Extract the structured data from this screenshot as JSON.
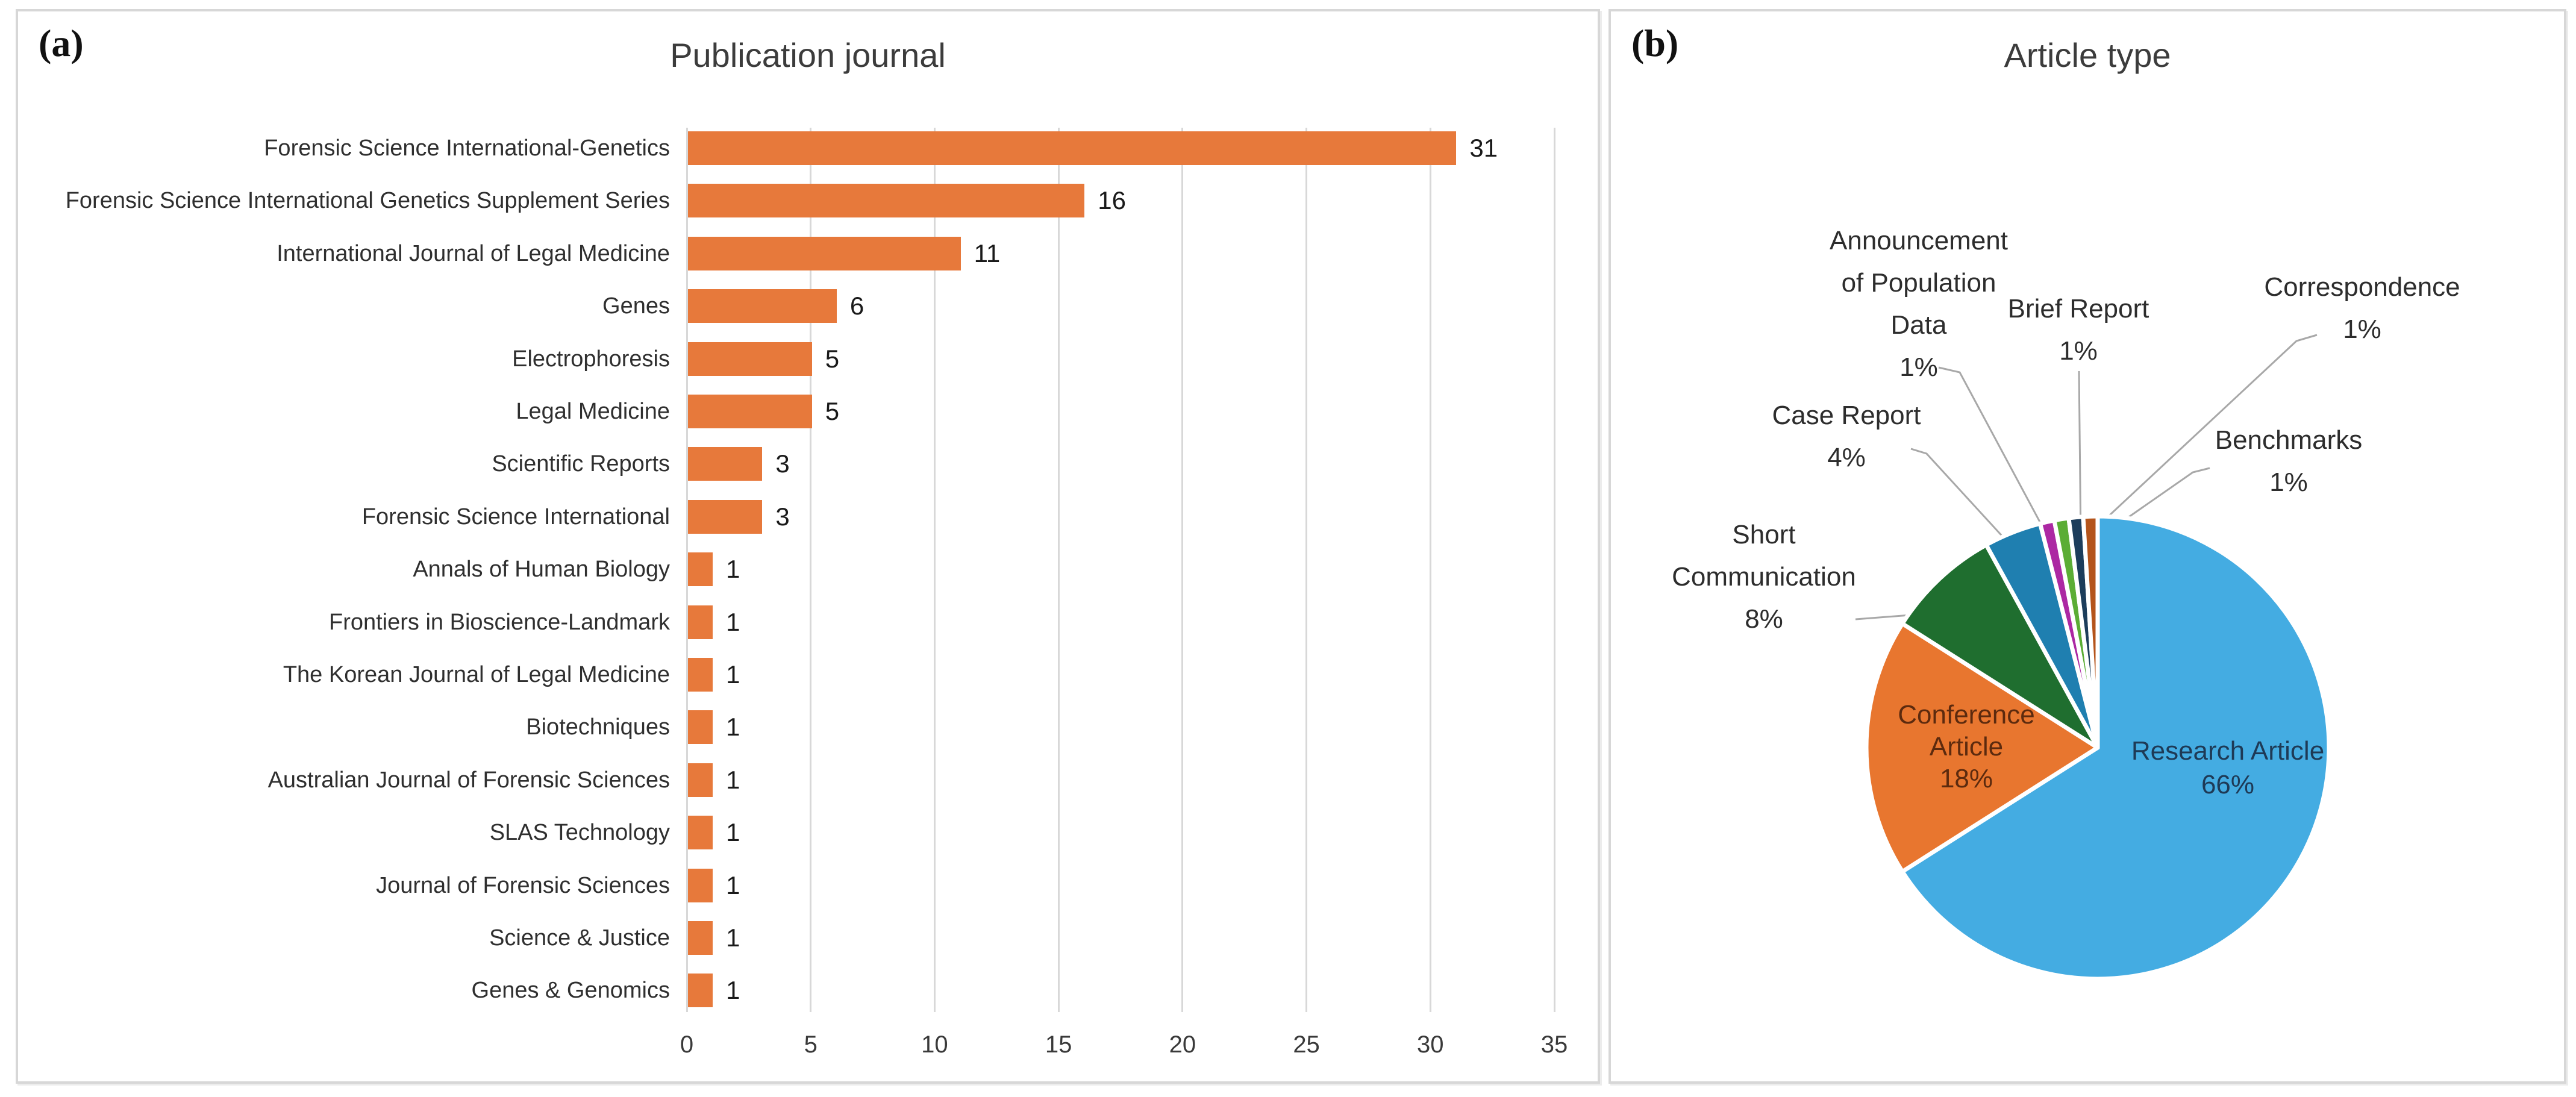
{
  "panel_a": {
    "tag": "(a)"
  },
  "panel_b": {
    "tag": "(b)"
  },
  "chart_data": [
    {
      "type": "bar",
      "title": "Publication journal",
      "orientation": "horizontal",
      "categories": [
        "Forensic Science International-Genetics",
        "Forensic Science International Genetics Supplement Series",
        "International Journal of Legal Medicine",
        "Genes",
        "Electrophoresis",
        "Legal Medicine",
        "Scientific Reports",
        "Forensic Science International",
        "Annals of Human Biology",
        "Frontiers in Bioscience-Landmark",
        "The Korean Journal of Legal Medicine",
        "Biotechniques",
        "Australian Journal of Forensic Sciences",
        "SLAS Technology",
        "Journal of Forensic Sciences",
        "Science & Justice",
        "Genes & Genomics"
      ],
      "values": [
        31,
        16,
        11,
        6,
        5,
        5,
        3,
        3,
        1,
        1,
        1,
        1,
        1,
        1,
        1,
        1,
        1
      ],
      "bar_color": "#E7793B",
      "grid_color": "#D8D8D8",
      "xlim": [
        0,
        35
      ],
      "x_ticks": [
        0,
        5,
        10,
        15,
        20,
        25,
        30,
        35
      ],
      "grid": true,
      "data_labels": true
    },
    {
      "type": "pie",
      "title": "Article type",
      "start_angle_deg": 0,
      "direction": "clockwise",
      "leader_line_color": "#A8A8A8",
      "slices": [
        {
          "label": "Research Article",
          "label_lines": [
            "Research Article"
          ],
          "pct": 66,
          "color": "#44ACE2",
          "label_placement": "inside",
          "label_color": "#1E3A56"
        },
        {
          "label": "Conference Article",
          "label_lines": [
            "Conference",
            "Article"
          ],
          "pct": 18,
          "color": "#E8762F",
          "label_placement": "inside",
          "label_color": "#5C2A0E"
        },
        {
          "label": "Short Communication",
          "label_lines": [
            "Short",
            "Communication"
          ],
          "pct": 8,
          "color": "#1F6E2F",
          "label_placement": "callout",
          "label_color": "#2D2D2D"
        },
        {
          "label": "Case Report",
          "label_lines": [
            "Case Report"
          ],
          "pct": 4,
          "color": "#1F7FB0",
          "label_placement": "callout",
          "label_color": "#2D2D2D"
        },
        {
          "label": "Announcement of Population Data",
          "label_lines": [
            "Announcement",
            "of Population",
            "Data"
          ],
          "pct": 1,
          "color": "#AC28A3",
          "label_placement": "callout",
          "label_color": "#2D2D2D"
        },
        {
          "label": "Brief Report",
          "label_lines": [
            "Brief Report"
          ],
          "pct": 1,
          "color": "#5BAD35",
          "label_placement": "callout",
          "label_color": "#2D2D2D"
        },
        {
          "label": "Correspondence",
          "label_lines": [
            "Correspondence"
          ],
          "pct": 1,
          "color": "#1C3D5B",
          "label_placement": "callout",
          "label_color": "#2D2D2D"
        },
        {
          "label": "Benchmarks",
          "label_lines": [
            "Benchmarks"
          ],
          "pct": 1,
          "color": "#B4541B",
          "label_placement": "callout",
          "label_color": "#2D2D2D"
        }
      ]
    }
  ]
}
